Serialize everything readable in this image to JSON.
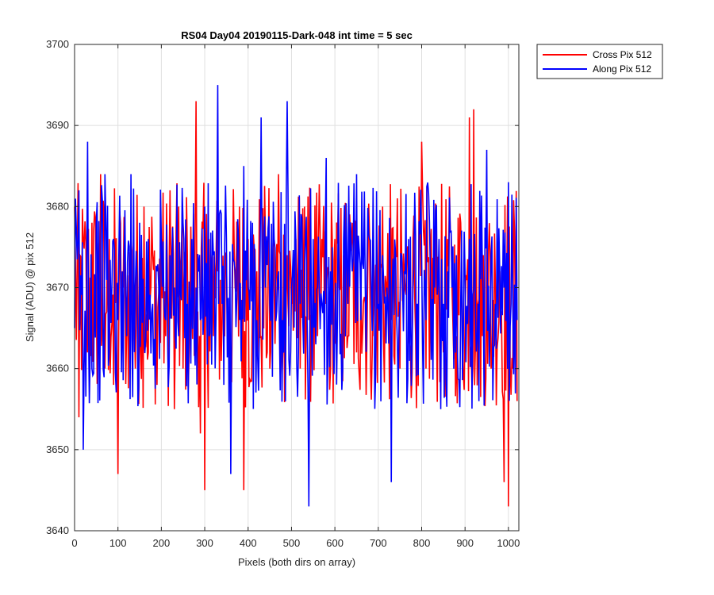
{
  "chart_data": {
    "type": "line",
    "title": "RS04 Day04 20190115-Dark-048 int time = 5 sec",
    "xlabel": "Pixels (both dirs on array)",
    "ylabel": "Signal (ADU) @ pix 512",
    "xlim": [
      0,
      1024
    ],
    "ylim": [
      3640,
      3700
    ],
    "xticks": [
      0,
      100,
      200,
      300,
      400,
      500,
      600,
      700,
      800,
      900,
      1000
    ],
    "yticks": [
      3640,
      3650,
      3660,
      3670,
      3680,
      3690,
      3700
    ],
    "xtick_labels": [
      "0",
      "100",
      "200",
      "300",
      "400",
      "500",
      "600",
      "700",
      "800",
      "900",
      "1000"
    ],
    "ytick_labels": [
      "3640",
      "3650",
      "3660",
      "3670",
      "3680",
      "3690",
      "3700"
    ],
    "grid": true,
    "legend_position": "outside-top-right",
    "series": [
      {
        "name": "Cross Pix 512",
        "color": "#ff0000",
        "x": [
          0,
          10,
          20,
          30,
          40,
          50,
          60,
          70,
          80,
          90,
          100,
          110,
          120,
          130,
          140,
          150,
          160,
          170,
          180,
          190,
          200,
          210,
          220,
          230,
          240,
          250,
          260,
          270,
          280,
          290,
          300,
          310,
          320,
          330,
          340,
          350,
          360,
          370,
          380,
          390,
          400,
          410,
          420,
          430,
          440,
          450,
          460,
          470,
          480,
          490,
          500,
          510,
          520,
          530,
          540,
          550,
          560,
          570,
          580,
          590,
          600,
          610,
          620,
          630,
          640,
          650,
          660,
          670,
          680,
          690,
          700,
          710,
          720,
          730,
          740,
          750,
          760,
          770,
          780,
          790,
          800,
          810,
          820,
          830,
          840,
          850,
          860,
          870,
          880,
          890,
          900,
          910,
          920,
          930,
          940,
          950,
          960,
          970,
          980,
          990,
          1000,
          1010,
          1020
        ],
        "y": [
          3680,
          3654,
          3676,
          3662,
          3678,
          3670,
          3684,
          3660,
          3676,
          3658,
          3647,
          3672,
          3665,
          3676,
          3660,
          3670,
          3680,
          3662,
          3674,
          3658,
          3676,
          3664,
          3682,
          3655,
          3680,
          3660,
          3674,
          3668,
          3693,
          3652,
          3645,
          3676,
          3664,
          3672,
          3666,
          3674,
          3660,
          3670,
          3680,
          3645,
          3676,
          3668,
          3672,
          3664,
          3676,
          3660,
          3670,
          3684,
          3662,
          3674,
          3668,
          3676,
          3660,
          3680,
          3666,
          3672,
          3664,
          3676,
          3668,
          3660,
          3676,
          3670,
          3674,
          3664,
          3678,
          3662,
          3672,
          3668,
          3676,
          3664,
          3672,
          3680,
          3668,
          3666,
          3674,
          3660,
          3672,
          3664,
          3676,
          3668,
          3688,
          3660,
          3674,
          3668,
          3672,
          3662,
          3676,
          3670,
          3664,
          3678,
          3666,
          3691,
          3692,
          3668,
          3664,
          3676,
          3660,
          3670,
          3672,
          3646,
          3643,
          3660,
          3656
        ]
      },
      {
        "name": "Along Pix 512",
        "color": "#0000ff",
        "x": [
          0,
          10,
          20,
          30,
          40,
          50,
          60,
          70,
          80,
          90,
          100,
          110,
          120,
          130,
          140,
          150,
          160,
          170,
          180,
          190,
          200,
          210,
          220,
          230,
          240,
          250,
          260,
          270,
          280,
          290,
          300,
          310,
          320,
          330,
          340,
          350,
          360,
          370,
          380,
          390,
          400,
          410,
          420,
          430,
          440,
          450,
          460,
          470,
          480,
          490,
          500,
          510,
          520,
          530,
          540,
          550,
          560,
          570,
          580,
          590,
          600,
          610,
          620,
          630,
          640,
          650,
          660,
          670,
          680,
          690,
          700,
          710,
          720,
          730,
          740,
          750,
          760,
          770,
          780,
          790,
          800,
          810,
          820,
          830,
          840,
          850,
          860,
          870,
          880,
          890,
          900,
          910,
          920,
          930,
          940,
          950,
          960,
          970,
          980,
          990,
          1000,
          1010,
          1020
        ],
        "y": [
          3665,
          3682,
          3650,
          3688,
          3660,
          3678,
          3670,
          3684,
          3662,
          3676,
          3666,
          3672,
          3664,
          3684,
          3670,
          3678,
          3664,
          3676,
          3668,
          3672,
          3676,
          3666,
          3674,
          3670,
          3664,
          3678,
          3668,
          3676,
          3670,
          3666,
          3680,
          3664,
          3674,
          3695,
          3668,
          3676,
          3647,
          3672,
          3666,
          3685,
          3670,
          3678,
          3666,
          3691,
          3670,
          3668,
          3676,
          3672,
          3666,
          3693,
          3670,
          3676,
          3668,
          3672,
          3643,
          3676,
          3670,
          3668,
          3686,
          3672,
          3666,
          3670,
          3676,
          3668,
          3672,
          3684,
          3666,
          3670,
          3676,
          3672,
          3668,
          3674,
          3670,
          3646,
          3674,
          3668,
          3672,
          3676,
          3670,
          3668,
          3674,
          3666,
          3672,
          3670,
          3676,
          3668,
          3672,
          3670,
          3674,
          3668,
          3672,
          3676,
          3670,
          3668,
          3672,
          3687,
          3674,
          3668,
          3672,
          3670,
          3683,
          3668,
          3666
        ]
      }
    ]
  }
}
